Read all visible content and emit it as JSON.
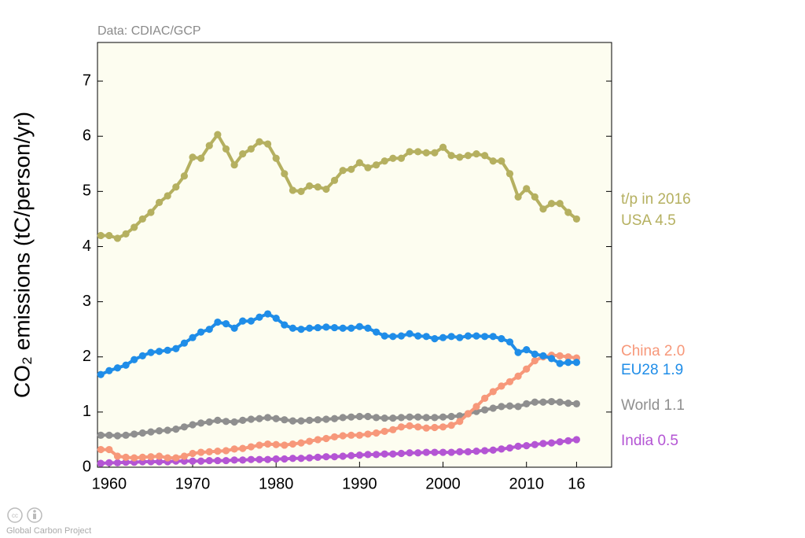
{
  "chart_data": {
    "type": "line",
    "source": "Data: CDIAC/GCP",
    "footer": "Global Carbon Project",
    "ylabel": "CO₂ emissions (tC/person/yr)",
    "annotation": "t/p in 2016",
    "x": [
      1959,
      1960,
      1961,
      1962,
      1963,
      1964,
      1965,
      1966,
      1967,
      1968,
      1969,
      1970,
      1971,
      1972,
      1973,
      1974,
      1975,
      1976,
      1977,
      1978,
      1979,
      1980,
      1981,
      1982,
      1983,
      1984,
      1985,
      1986,
      1987,
      1988,
      1989,
      1990,
      1991,
      1992,
      1993,
      1994,
      1995,
      1996,
      1997,
      1998,
      1999,
      2000,
      2001,
      2002,
      2003,
      2004,
      2005,
      2006,
      2007,
      2008,
      2009,
      2010,
      2011,
      2012,
      2013,
      2014,
      2015,
      2016
    ],
    "series": [
      {
        "name": "World 1.1",
        "color": "#8f8f8f",
        "values": [
          0.58,
          0.58,
          0.57,
          0.58,
          0.6,
          0.62,
          0.64,
          0.66,
          0.67,
          0.69,
          0.73,
          0.77,
          0.8,
          0.82,
          0.85,
          0.83,
          0.82,
          0.85,
          0.87,
          0.88,
          0.9,
          0.88,
          0.86,
          0.84,
          0.84,
          0.85,
          0.86,
          0.87,
          0.88,
          0.9,
          0.91,
          0.92,
          0.92,
          0.9,
          0.89,
          0.89,
          0.9,
          0.91,
          0.91,
          0.9,
          0.9,
          0.91,
          0.92,
          0.93,
          0.97,
          1.01,
          1.04,
          1.07,
          1.1,
          1.11,
          1.1,
          1.15,
          1.18,
          1.18,
          1.19,
          1.18,
          1.16,
          1.15
        ]
      },
      {
        "name": "India 0.5",
        "color": "#b455d4",
        "values": [
          0.07,
          0.08,
          0.08,
          0.09,
          0.09,
          0.1,
          0.1,
          0.1,
          0.1,
          0.11,
          0.11,
          0.11,
          0.11,
          0.12,
          0.12,
          0.12,
          0.13,
          0.13,
          0.14,
          0.14,
          0.14,
          0.15,
          0.15,
          0.16,
          0.16,
          0.17,
          0.18,
          0.19,
          0.19,
          0.2,
          0.21,
          0.22,
          0.23,
          0.23,
          0.24,
          0.24,
          0.25,
          0.26,
          0.26,
          0.27,
          0.27,
          0.27,
          0.27,
          0.28,
          0.28,
          0.29,
          0.3,
          0.31,
          0.33,
          0.35,
          0.38,
          0.39,
          0.41,
          0.43,
          0.44,
          0.46,
          0.48,
          0.5
        ]
      },
      {
        "name": "China 2.0",
        "color": "#f7987a",
        "values": [
          0.32,
          0.32,
          0.2,
          0.18,
          0.17,
          0.18,
          0.19,
          0.2,
          0.17,
          0.17,
          0.2,
          0.25,
          0.27,
          0.28,
          0.29,
          0.3,
          0.33,
          0.34,
          0.37,
          0.4,
          0.42,
          0.41,
          0.4,
          0.42,
          0.44,
          0.47,
          0.5,
          0.52,
          0.55,
          0.57,
          0.58,
          0.58,
          0.6,
          0.62,
          0.65,
          0.68,
          0.73,
          0.75,
          0.73,
          0.71,
          0.72,
          0.73,
          0.76,
          0.83,
          0.97,
          1.1,
          1.25,
          1.37,
          1.47,
          1.55,
          1.65,
          1.78,
          1.93,
          2.0,
          2.03,
          2.02,
          2.0,
          1.98
        ]
      },
      {
        "name": "EU28 1.9",
        "color": "#1f8de8",
        "values": [
          1.68,
          1.75,
          1.8,
          1.85,
          1.95,
          2.02,
          2.08,
          2.1,
          2.12,
          2.15,
          2.25,
          2.35,
          2.45,
          2.5,
          2.63,
          2.6,
          2.52,
          2.65,
          2.65,
          2.72,
          2.78,
          2.7,
          2.58,
          2.52,
          2.5,
          2.52,
          2.53,
          2.54,
          2.53,
          2.52,
          2.52,
          2.55,
          2.52,
          2.45,
          2.38,
          2.37,
          2.38,
          2.42,
          2.38,
          2.37,
          2.33,
          2.35,
          2.37,
          2.35,
          2.38,
          2.38,
          2.37,
          2.37,
          2.33,
          2.27,
          2.08,
          2.13,
          2.05,
          2.02,
          1.97,
          1.88,
          1.9,
          1.9
        ]
      },
      {
        "name": "USA 4.5",
        "color": "#b5b060",
        "values": [
          4.2,
          4.2,
          4.15,
          4.23,
          4.35,
          4.5,
          4.62,
          4.8,
          4.92,
          5.08,
          5.28,
          5.62,
          5.6,
          5.83,
          6.03,
          5.77,
          5.48,
          5.68,
          5.77,
          5.9,
          5.86,
          5.6,
          5.32,
          5.02,
          5.0,
          5.1,
          5.08,
          5.04,
          5.2,
          5.38,
          5.4,
          5.52,
          5.43,
          5.48,
          5.55,
          5.6,
          5.6,
          5.72,
          5.72,
          5.7,
          5.7,
          5.8,
          5.65,
          5.62,
          5.65,
          5.68,
          5.65,
          5.55,
          5.55,
          5.32,
          4.9,
          5.05,
          4.9,
          4.68,
          4.78,
          4.78,
          4.62,
          4.5
        ]
      }
    ],
    "xlim": [
      1958.6,
      2020.2
    ],
    "xticks": [
      1960,
      1970,
      1980,
      1990,
      2000,
      2010,
      {
        "value": 2016,
        "label": "16"
      }
    ],
    "ylim": [
      0,
      7.7
    ],
    "yticks": [
      0,
      1,
      2,
      3,
      4,
      5,
      6,
      7
    ]
  }
}
